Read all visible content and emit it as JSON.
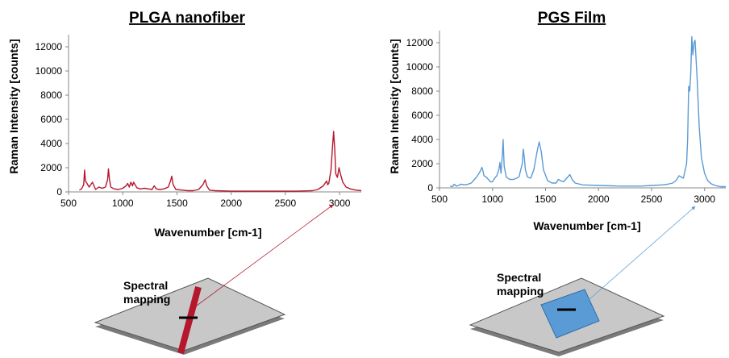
{
  "chart_data": [
    {
      "type": "line",
      "title": "PLGA nanofiber",
      "xlabel": "Wavenumber [cm-1]",
      "ylabel": "Raman Intensity [counts]",
      "xlim": [
        500,
        3200
      ],
      "ylim": [
        0,
        13000
      ],
      "x_ticks": [
        500,
        1000,
        1500,
        2000,
        2500,
        3000
      ],
      "y_ticks": [
        0,
        2000,
        4000,
        6000,
        8000,
        10000,
        12000
      ],
      "grid": false,
      "series": [
        {
          "color": "#b5172d",
          "x": [
            600,
            620,
            640,
            648,
            656,
            670,
            690,
            720,
            750,
            780,
            810,
            840,
            860,
            868,
            876,
            890,
            920,
            960,
            1000,
            1030,
            1045,
            1060,
            1075,
            1090,
            1100,
            1130,
            1160,
            1200,
            1240,
            1270,
            1290,
            1310,
            1340,
            1380,
            1420,
            1440,
            1452,
            1465,
            1490,
            1550,
            1600,
            1650,
            1700,
            1740,
            1760,
            1775,
            1800,
            1850,
            2000,
            2200,
            2400,
            2600,
            2750,
            2800,
            2850,
            2880,
            2890,
            2900,
            2920,
            2935,
            2945,
            2955,
            2965,
            2980,
            2995,
            3010,
            3030,
            3060,
            3100,
            3150,
            3200
          ],
          "y": [
            150,
            250,
            600,
            1800,
            900,
            700,
            400,
            800,
            200,
            400,
            300,
            400,
            1000,
            1900,
            1100,
            400,
            250,
            200,
            300,
            500,
            700,
            400,
            800,
            500,
            800,
            350,
            250,
            300,
            250,
            200,
            500,
            250,
            200,
            250,
            400,
            900,
            1300,
            600,
            200,
            150,
            100,
            100,
            200,
            600,
            1000,
            500,
            150,
            100,
            60,
            60,
            60,
            60,
            100,
            200,
            500,
            900,
            600,
            700,
            1800,
            3800,
            5000,
            3500,
            1500,
            1200,
            2000,
            1400,
            800,
            400,
            250,
            150,
            100
          ]
        }
      ]
    },
    {
      "type": "line",
      "title": "PGS Film",
      "xlabel": "Wavenumber [cm-1]",
      "ylabel": "Raman Intensity [counts]",
      "xlim": [
        500,
        3200
      ],
      "ylim": [
        0,
        13000
      ],
      "x_ticks": [
        500,
        1000,
        1500,
        2000,
        2500,
        3000
      ],
      "y_ticks": [
        0,
        2000,
        4000,
        6000,
        8000,
        10000,
        12000
      ],
      "grid": false,
      "series": [
        {
          "color": "#5b9bd5",
          "x": [
            600,
            620,
            640,
            660,
            680,
            700,
            750,
            800,
            850,
            880,
            900,
            910,
            920,
            940,
            960,
            980,
            1000,
            1020,
            1040,
            1060,
            1070,
            1080,
            1095,
            1100,
            1110,
            1130,
            1160,
            1200,
            1250,
            1280,
            1290,
            1300,
            1310,
            1330,
            1360,
            1390,
            1420,
            1440,
            1460,
            1480,
            1520,
            1560,
            1600,
            1620,
            1640,
            1670,
            1700,
            1720,
            1730,
            1750,
            1780,
            1850,
            2000,
            2200,
            2400,
            2500,
            2600,
            2650,
            2700,
            2730,
            2760,
            2800,
            2830,
            2840,
            2850,
            2860,
            2870,
            2880,
            2890,
            2900,
            2910,
            2930,
            2950,
            2970,
            3000,
            3030,
            3060,
            3100,
            3150,
            3200
          ],
          "y": [
            150,
            100,
            300,
            150,
            200,
            300,
            250,
            400,
            900,
            1300,
            1700,
            1400,
            1000,
            900,
            700,
            500,
            500,
            800,
            1000,
            1500,
            2100,
            1200,
            3000,
            4000,
            1800,
            900,
            700,
            700,
            900,
            2000,
            3200,
            2500,
            1500,
            900,
            800,
            1500,
            3000,
            3800,
            3000,
            1500,
            600,
            400,
            400,
            700,
            600,
            500,
            800,
            1000,
            1100,
            700,
            400,
            250,
            200,
            150,
            150,
            200,
            250,
            300,
            400,
            600,
            1000,
            800,
            2000,
            4000,
            8400,
            8000,
            9500,
            12500,
            11000,
            12000,
            12200,
            9000,
            5000,
            2500,
            1200,
            600,
            350,
            200,
            100,
            100
          ]
        }
      ]
    }
  ],
  "annotations": {
    "left_label_line1": "Spectral",
    "left_label_line2": "mapping",
    "right_label_line1": "Spectral",
    "right_label_line2": "mapping"
  }
}
